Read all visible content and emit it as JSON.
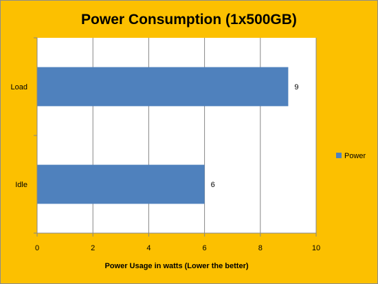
{
  "chart_data": {
    "type": "bar",
    "orientation": "horizontal",
    "title": "Power Consumption (1x500GB)",
    "xlabel": "Power Usage in watts (Lower the better)",
    "ylabel": "",
    "categories": [
      "Load",
      "Idle"
    ],
    "series": [
      {
        "name": "Power",
        "values": [
          9,
          6
        ],
        "color": "#4f81bd"
      }
    ],
    "xlim": [
      0,
      10
    ],
    "xticks": [
      "0",
      "2",
      "4",
      "6",
      "8",
      "10"
    ],
    "grid": true,
    "legend_position": "right",
    "background_color": "#fcc000",
    "plot_background_color": "#ffffff"
  }
}
